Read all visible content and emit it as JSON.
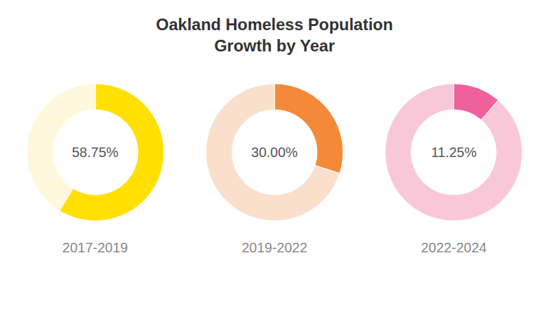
{
  "title": "Oakland Homeless Population\nGrowth by Year",
  "chart_data": [
    {
      "type": "pie",
      "donut": true,
      "title": "2017-2019",
      "values": [
        58.75,
        41.25
      ],
      "value_labels": [
        "58.75%",
        null
      ],
      "colors": [
        "#FFE000",
        "#FFF8DC"
      ]
    },
    {
      "type": "pie",
      "donut": true,
      "title": "2019-2022",
      "values": [
        30.0,
        70.0
      ],
      "value_labels": [
        "30.00%",
        null
      ],
      "colors": [
        "#F5893A",
        "#FAE0CC"
      ]
    },
    {
      "type": "pie",
      "donut": true,
      "title": "2022-2024",
      "values": [
        11.25,
        88.75
      ],
      "value_labels": [
        "11.25%",
        null
      ],
      "colors": [
        "#F0609A",
        "#F9C8D8"
      ]
    }
  ]
}
